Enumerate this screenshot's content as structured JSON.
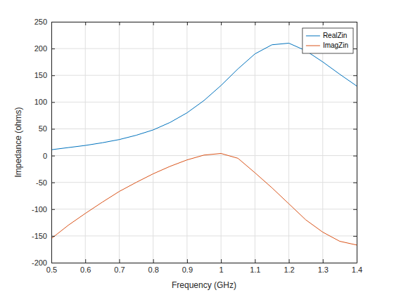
{
  "chart_data": {
    "type": "line",
    "x_label": "Frequency (GHz)",
    "y_label": "Impedance (ohms)",
    "x": [
      0.5,
      0.55,
      0.6,
      0.65,
      0.7,
      0.75,
      0.8,
      0.85,
      0.9,
      0.95,
      1.0,
      1.05,
      1.1,
      1.15,
      1.2,
      1.25,
      1.3,
      1.35,
      1.4
    ],
    "series": [
      {
        "name": "RealZin",
        "color": "#0072bd",
        "values": [
          11,
          15,
          19,
          24,
          30,
          38,
          48,
          62,
          80,
          103,
          131,
          162,
          190,
          207,
          210,
          196,
          175,
          152,
          130
        ]
      },
      {
        "name": "ImagZin",
        "color": "#d95319",
        "values": [
          -155,
          -130,
          -108,
          -87,
          -67,
          -50,
          -34,
          -20,
          -8,
          1,
          4,
          -5,
          -32,
          -60,
          -90,
          -120,
          -143,
          -160,
          -167
        ]
      }
    ],
    "xlim": [
      0.5,
      1.4
    ],
    "xticks": [
      0.5,
      0.6,
      0.7,
      0.8,
      0.9,
      1,
      1.1,
      1.2,
      1.3,
      1.4
    ],
    "ylim": [
      -200,
      250
    ],
    "yticks": [
      -200,
      -150,
      -100,
      -50,
      0,
      50,
      100,
      150,
      200,
      250
    ],
    "grid": true,
    "legend": "northeast"
  }
}
